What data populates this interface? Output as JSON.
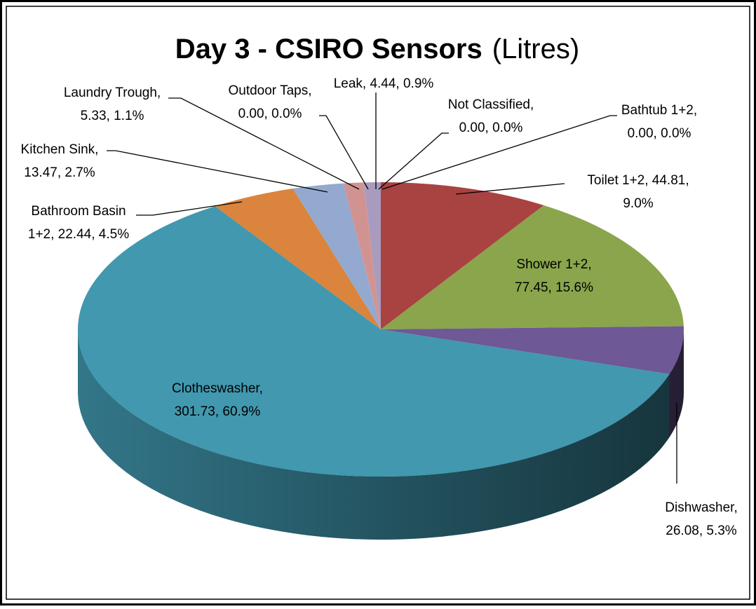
{
  "chart_data": {
    "type": "pie",
    "title": "Day 3 - CSIRO Sensors",
    "subtitle": "(Litres)",
    "categories": [
      "Toilet 1+2",
      "Shower 1+2",
      "Dishwasher",
      "Clotheswasher",
      "Bathroom Basin 1+2",
      "Kitchen Sink",
      "Laundry Trough",
      "Outdoor Taps",
      "Leak",
      "Not Classified",
      "Bathtub 1+2"
    ],
    "values": [
      44.81,
      77.45,
      26.08,
      301.73,
      22.44,
      13.47,
      5.33,
      0.0,
      4.44,
      0.0,
      0.0
    ],
    "value_labels": [
      [
        "Toilet 1+2, 44.81,",
        "9.0%"
      ],
      [
        "Shower 1+2,",
        "77.45, 15.6%"
      ],
      [
        "Dishwasher,",
        "26.08, 5.3%"
      ],
      [
        "Clotheswasher,",
        "301.73, 60.9%"
      ],
      [
        "Bathroom Basin",
        "1+2, 22.44, 4.5%"
      ],
      [
        "Kitchen Sink,",
        "13.47, 2.7%"
      ],
      [
        "Laundry Trough,",
        "5.33, 1.1%"
      ],
      [
        "Outdoor Taps,",
        "0.00, 0.0%"
      ],
      [
        "Leak, 4.44, 0.9%"
      ],
      [
        "Not Classified,",
        "0.00, 0.0%"
      ],
      [
        "Bathtub 1+2,",
        "0.00, 0.0%"
      ]
    ],
    "colors": [
      "#a84342",
      "#8aa54b",
      "#6e5896",
      "#4198af",
      "#db843d",
      "#93a9cf",
      "#d19392",
      "#b9cd96",
      "#a99bbd",
      "#7fbdd0",
      "#f0b27f"
    ],
    "three_d": true
  }
}
